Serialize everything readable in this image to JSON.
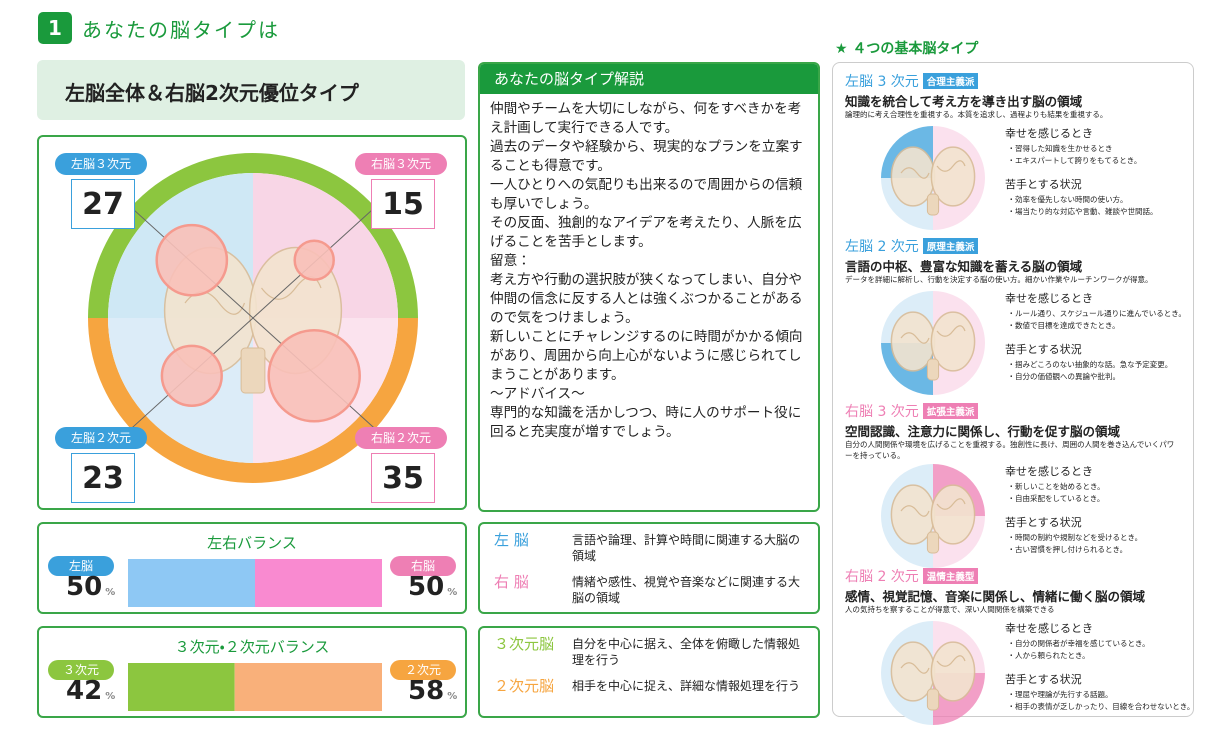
{
  "header": {
    "number": "1",
    "title": "あなたの脳タイプは"
  },
  "result_title": "左脳全体＆右脳2次元優位タイプ",
  "quadrants": [
    {
      "label": "左脳３次元",
      "value": 27,
      "color": "#3aa0dc"
    },
    {
      "label": "右脳３次元",
      "value": 15,
      "color": "#ee7fb4"
    },
    {
      "label": "左脳２次元",
      "value": 23,
      "color": "#3aa0dc"
    },
    {
      "label": "右脳２次元",
      "value": 35,
      "color": "#ee7fb4"
    }
  ],
  "description": {
    "title": "あなたの脳タイプ解説",
    "paragraphs": [
      "仲間やチームを大切にしながら、何をすべきかを考え計画して実行できる人です。",
      "過去のデータや経験から、現実的なプランを立案することも得意です。",
      "一人ひとりへの気配りも出来るので周囲からの信頼も厚いでしょう。",
      "その反面、独創的なアイデアを考えたり、人脈を広げることを苦手とします。",
      "留意：",
      "考え方や行動の選択肢が狭くなってしまい、自分や仲間の信念に反する人とは強くぶつかることがあるので気をつけましょう。",
      "新しいことにチャレンジするのに時間がかかる傾向があり、周囲から向上心がないように感じられてしまうことがあります。",
      "〜アドバイス〜",
      "専門的な知識を活かしつつ、時に人のサポート役に回ると充実度が増すでしょう。"
    ]
  },
  "unit": "%",
  "balances": [
    {
      "title": "左右バランス",
      "left": {
        "label": "左脳",
        "value": 50,
        "color": "#3aa0dc",
        "bar": "#8ec8f4"
      },
      "right": {
        "label": "右脳",
        "value": 50,
        "color": "#ee7fb4",
        "bar": "#f98ad0"
      }
    },
    {
      "title": "３次元・２次元バランス",
      "left": {
        "label": "３次元",
        "value": 42,
        "color": "#8cc63f",
        "bar": "#8cc63f"
      },
      "right": {
        "label": "２次元",
        "value": 58,
        "color": "#f6a540",
        "bar": "#f9b07a"
      }
    }
  ],
  "definitions": [
    [
      {
        "term": "左 脳",
        "text": "言語や論理、計算や時間に関連する大脳の領域",
        "color": "#3aa0dc"
      },
      {
        "term": "右 脳",
        "text": "情緒や感性、視覚や音楽などに関連する大脳の領域",
        "color": "#ee7fb4"
      }
    ],
    [
      {
        "term": "３次元脳",
        "text": "自分を中心に据え、全体を俯瞰した情報処理を行う",
        "color": "#8cc63f"
      },
      {
        "term": "２次元脳",
        "text": "相手を中心に捉え、詳細な情報処理を行う",
        "color": "#f6a540"
      }
    ]
  ],
  "basic_types": {
    "title": "★ ４つの基本脳タイプ",
    "happy_title": "幸せを感じるとき",
    "hard_title": "苦手とする状況",
    "types": [
      {
        "name": "左脳 3 次元",
        "tag": "合理主義派",
        "color": "#3aa0dc",
        "headline": "知識を統合して考え方を導き出す脳の領域",
        "desc": "論理的に考え合理性を重視する。本質を追求し、過程よりも結果を重視する。",
        "happy": [
          "習得した知識を生かせるとき",
          "エキスパートして誇りをもてるとき。"
        ],
        "hard": [
          "効率を優先しない時間の使い方。",
          "場当たり的な対応や言動、雑談や世間話。"
        ]
      },
      {
        "name": "左脳 2 次元",
        "tag": "原理主義派",
        "color": "#3aa0dc",
        "headline": "言語の中枢、豊富な知識を蓄える脳の領域",
        "desc": "データを詳細に解析し、行動を決定する脳の使い方。細かい作業やルーチンワークが得意。",
        "happy": [
          "ルール通り、スケジュール通りに進んでいるとき。",
          "数値で目標を達成できたとき。"
        ],
        "hard": [
          "掴みどころのない抽象的な話。急な予定変更。",
          "自分の価値観への異論や批判。"
        ]
      },
      {
        "name": "右脳 3 次元",
        "tag": "拡張主義派",
        "color": "#ee7fb4",
        "headline": "空間認識、注意力に関係し、行動を促す脳の領域",
        "desc": "自分の人間関係や環境を広げることを重視する。独創性に長け、周囲の人間を巻き込んでいくパワーを持っている。",
        "happy": [
          "新しいことを始めるとき。",
          "自由采配をしているとき。"
        ],
        "hard": [
          "時間の制約や規制などを受けるとき。",
          "古い習慣を押し付けられるとき。"
        ]
      },
      {
        "name": "右脳 2 次元",
        "tag": "温情主義型",
        "color": "#ee7fb4",
        "headline": "感情、視覚記憶、音楽に関係し、情緒に働く脳の領域",
        "desc": "人の気持ちを察することが得意で、深い人間関係を構築できる",
        "happy": [
          "自分の関係者が幸福を感じているとき。",
          "人から頼られたとき。"
        ],
        "hard": [
          "理屈や理論が先行する話題。",
          "相手の表情が乏しかったり、目線を合わせないとき。"
        ]
      }
    ]
  }
}
